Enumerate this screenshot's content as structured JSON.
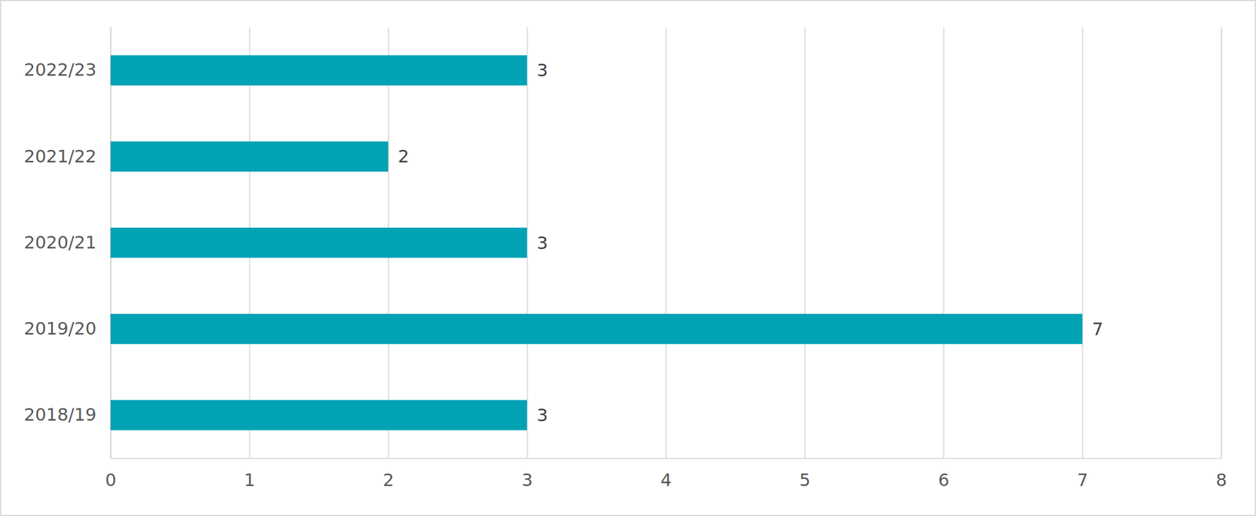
{
  "chart_data": {
    "type": "bar",
    "orientation": "horizontal",
    "categories": [
      "2022/23",
      "2021/22",
      "2020/21",
      "2019/20",
      "2018/19"
    ],
    "values": [
      3,
      2,
      3,
      7,
      3
    ],
    "color": "#00a2b4",
    "xlim": [
      0,
      8
    ],
    "xticks": [
      0,
      1,
      2,
      3,
      4,
      5,
      6,
      7,
      8
    ],
    "grid": true,
    "data_labels": true
  }
}
